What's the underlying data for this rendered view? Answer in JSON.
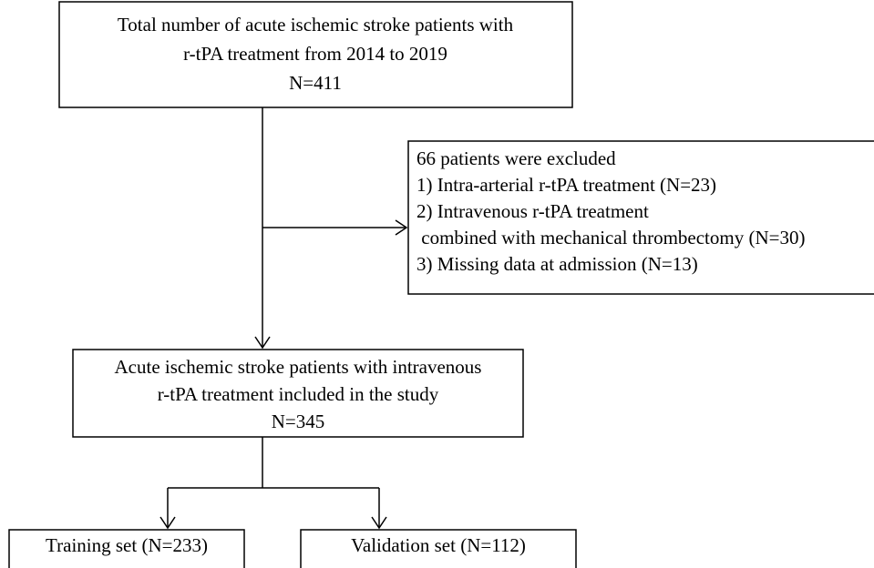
{
  "nodes": [
    {
      "lines": [
        "Total number of acute ischemic stroke patients with",
        "r-tPA treatment from 2014 to 2019",
        "N=411"
      ]
    },
    {
      "lines": [
        "66 patients were excluded",
        "1) Intra-arterial r-tPA treatment (N=23)",
        "2) Intravenous r-tPA treatment",
        " combined with mechanical thrombectomy (N=30)",
        "3) Missing data at admission (N=13)"
      ]
    },
    {
      "lines": [
        "Acute ischemic stroke patients with intravenous",
        "r-tPA treatment included in the study",
        "N=345"
      ]
    },
    {
      "lines": [
        "Training set (N=233)"
      ]
    },
    {
      "lines": [
        "Validation set (N=112)"
      ]
    }
  ]
}
